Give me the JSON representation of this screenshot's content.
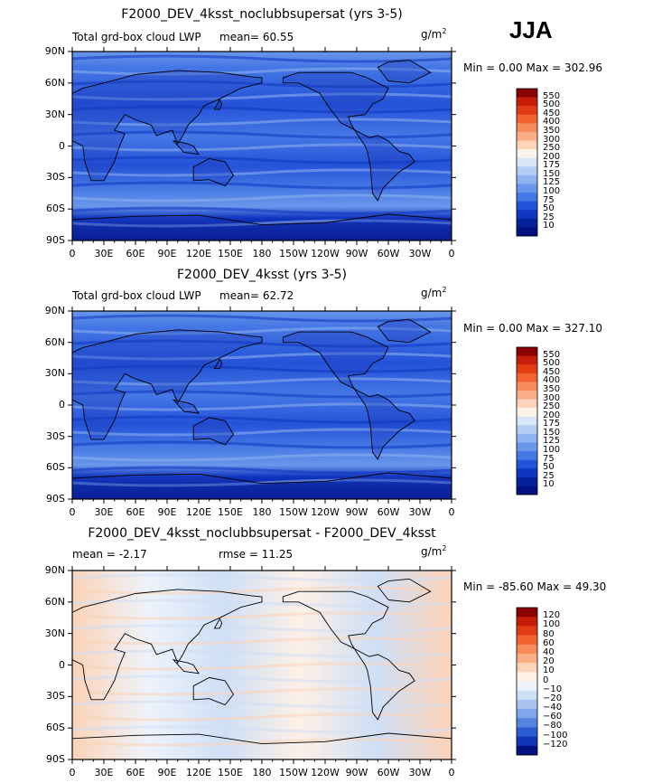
{
  "season": "JJA",
  "panels": [
    {
      "title": "F2000_DEV_4ksst_noclubbsupersat (yrs 3-5)",
      "left_label": "Total grd-box cloud LWP",
      "center_label": "mean=  60.55",
      "units": "g/m",
      "units_exp": "2",
      "minmax": "Min =    0.00 Max = 302.96",
      "colorbar": {
        "labels": [
          "550",
          "500",
          "450",
          "400",
          "350",
          "300",
          "250",
          "200",
          "175",
          "150",
          "125",
          "100",
          "75",
          "50",
          "25",
          "10"
        ],
        "colors": [
          "#8b0000",
          "#c41e0a",
          "#e33c15",
          "#f36330",
          "#f78b5c",
          "#f9ae88",
          "#fcd3b8",
          "#fdf2ea",
          "#d8e6f8",
          "#b4cdf4",
          "#8fb3ef",
          "#6a97ea",
          "#4578e5",
          "#2452d8",
          "#1035c0",
          "#06219c",
          "#021080"
        ]
      }
    },
    {
      "title": "F2000_DEV_4ksst (yrs 3-5)",
      "left_label": "Total grd-box cloud LWP",
      "center_label": "mean=  62.72",
      "units": "g/m",
      "units_exp": "2",
      "minmax": "Min =    0.00 Max = 327.10",
      "colorbar": {
        "labels": [
          "550",
          "500",
          "450",
          "400",
          "350",
          "300",
          "250",
          "200",
          "175",
          "150",
          "125",
          "100",
          "75",
          "50",
          "25",
          "10"
        ],
        "colors": [
          "#8b0000",
          "#c41e0a",
          "#e33c15",
          "#f36330",
          "#f78b5c",
          "#f9ae88",
          "#fcd3b8",
          "#fdf2ea",
          "#d8e6f8",
          "#b4cdf4",
          "#8fb3ef",
          "#6a97ea",
          "#4578e5",
          "#2452d8",
          "#1035c0",
          "#06219c",
          "#021080"
        ]
      }
    },
    {
      "title": "F2000_DEV_4ksst_noclubbsupersat - F2000_DEV_4ksst",
      "left_label": "mean =  -2.17",
      "center_label": "rmse =  11.25",
      "units": "g/m",
      "units_exp": "2",
      "minmax": "Min = -85.60 Max =  49.30",
      "colorbar": {
        "labels": [
          "120",
          "100",
          "80",
          "60",
          "40",
          "20",
          "10",
          "0",
          "−10",
          "−20",
          "−40",
          "−60",
          "−80",
          "−100",
          "−120"
        ],
        "colors": [
          "#8b0000",
          "#c41e0a",
          "#e33c15",
          "#f36330",
          "#f78b5c",
          "#f9ae88",
          "#fcd3b8",
          "#fdf0e6",
          "#eef3fb",
          "#cfdff6",
          "#a9c4f0",
          "#7fa6eb",
          "#5583e2",
          "#2c5bd6",
          "#1234b8",
          "#021080"
        ]
      }
    }
  ],
  "chart_data": {
    "type": "heatmap",
    "x_ticks": [
      "0",
      "30E",
      "60E",
      "90E",
      "120E",
      "150E",
      "180",
      "150W",
      "120W",
      "90W",
      "60W",
      "30W",
      "0"
    ],
    "y_ticks": [
      "90N",
      "60N",
      "30N",
      "0",
      "30S",
      "60S",
      "90S"
    ],
    "x_range": [
      0,
      360
    ],
    "y_range": [
      -90,
      90
    ]
  }
}
